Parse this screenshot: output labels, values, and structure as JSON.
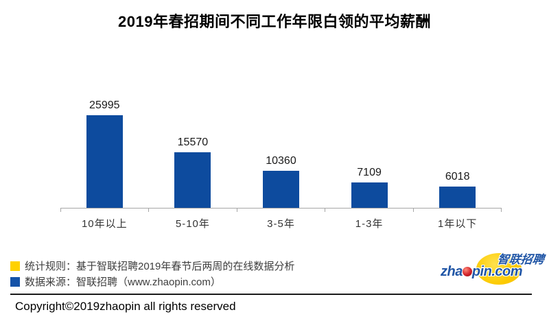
{
  "title": "2019年春招期间不同工作年限白领的平均薪酬",
  "chart_data": {
    "type": "bar",
    "categories": [
      "10年以上",
      "5-10年",
      "3-5年",
      "1-3年",
      "1年以下"
    ],
    "values": [
      25995,
      15570,
      10360,
      7109,
      6018
    ],
    "value_labels": [
      "25995",
      "15570",
      "10360",
      "7109",
      "6018"
    ],
    "title": "2019年春招期间不同工作年限白领的平均薪酬",
    "xlabel": "",
    "ylabel": "",
    "ylim": [
      0,
      26000
    ],
    "grid": false,
    "legend_position": "none",
    "bar_color": "#0d4b9e",
    "axis_color": "#a6a6a6"
  },
  "legend": [
    {
      "swatch_color": "#ffd100",
      "text": "统计规则：基于智联招聘2019年春节后两周的在线数据分析"
    },
    {
      "swatch_color": "#1553a8",
      "text": "数据来源：智联招聘（www.zhaopin.com）"
    }
  ],
  "logo": {
    "chinese": "智联招聘",
    "domain_prefix": "zha",
    "domain_suffix": "pin.com",
    "blue": "#2156a6",
    "yellow": "#fcca00",
    "red": "#d2232a"
  },
  "copyright": "Copyright©2019zhaopin all rights reserved",
  "colors": {
    "bar": "#0d4b9e",
    "axis": "#a6a6a6",
    "title": "#000000",
    "divider": "#1a1a1a"
  }
}
